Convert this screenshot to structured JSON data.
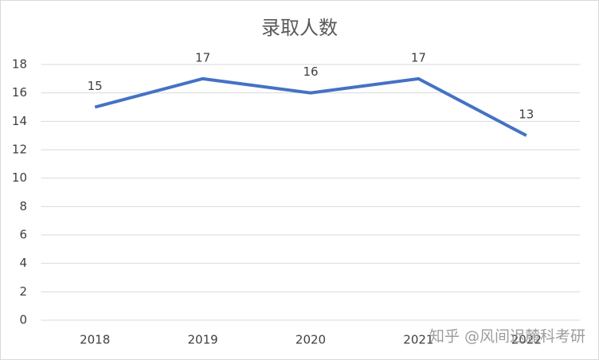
{
  "chart_data": {
    "type": "line",
    "title": "录取人数",
    "categories": [
      "2018",
      "2019",
      "2020",
      "2021",
      "2022"
    ],
    "values": [
      15,
      17,
      16,
      17,
      13
    ],
    "color": "#4472c4",
    "ylim": [
      0,
      18
    ],
    "yticks": [
      0,
      2,
      4,
      6,
      8,
      10,
      12,
      14,
      16,
      18
    ],
    "grid": true,
    "watermark": "知乎 @风间迟麓科考研"
  }
}
